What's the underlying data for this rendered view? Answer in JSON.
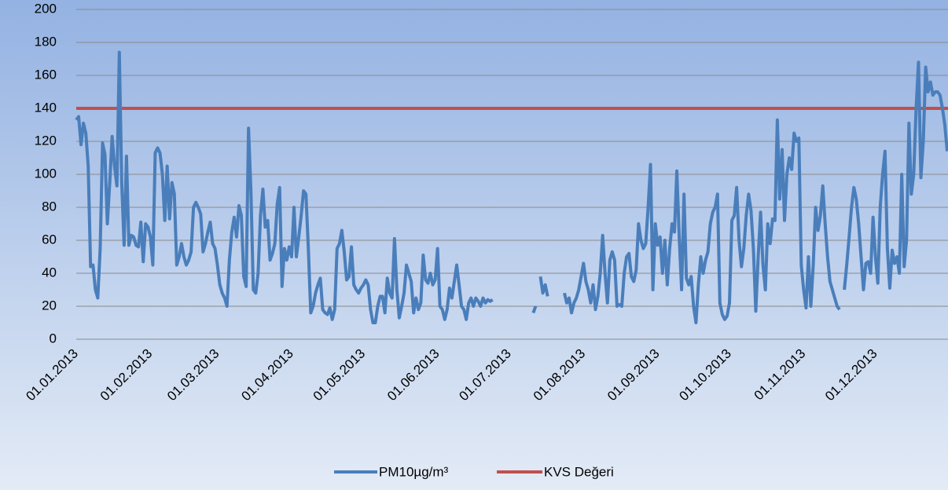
{
  "chart_data": {
    "type": "line",
    "categories": [
      "01.01.2013",
      null,
      null,
      null,
      null,
      null,
      null,
      null,
      null,
      null,
      null,
      null,
      null,
      null,
      null,
      null,
      null,
      null,
      null,
      null,
      null,
      null,
      null,
      null,
      null,
      null,
      null,
      null,
      null,
      null,
      null,
      "01.02.2013",
      null,
      null,
      null,
      null,
      null,
      null,
      null,
      null,
      null,
      null,
      null,
      null,
      null,
      null,
      null,
      null,
      null,
      null,
      null,
      null,
      null,
      null,
      null,
      null,
      null,
      null,
      null,
      "01.03.2013",
      null,
      null,
      null,
      null,
      null,
      null,
      null,
      null,
      null,
      null,
      null,
      null,
      null,
      null,
      null,
      null,
      null,
      null,
      null,
      null,
      null,
      null,
      null,
      null,
      null,
      null,
      null,
      null,
      null,
      null,
      "01.04.2013",
      null,
      null,
      null,
      null,
      null,
      null,
      null,
      null,
      null,
      null,
      null,
      null,
      null,
      null,
      null,
      null,
      null,
      null,
      null,
      null,
      null,
      null,
      null,
      null,
      null,
      null,
      null,
      null,
      null,
      "01.05.2013",
      null,
      null,
      null,
      null,
      null,
      null,
      null,
      null,
      null,
      null,
      null,
      null,
      null,
      null,
      null,
      null,
      null,
      null,
      null,
      null,
      null,
      null,
      null,
      null,
      null,
      null,
      null,
      null,
      null,
      null,
      "01.06.2013",
      null,
      null,
      null,
      null,
      null,
      null,
      null,
      null,
      null,
      null,
      null,
      null,
      null,
      null,
      null,
      null,
      null,
      null,
      null,
      null,
      null,
      null,
      null,
      null,
      null,
      null,
      null,
      null,
      null,
      "01.07.2013",
      null,
      null,
      null,
      null,
      null,
      null,
      null,
      null,
      null,
      null,
      null,
      null,
      null,
      null,
      null,
      null,
      null,
      null,
      null,
      null,
      null,
      null,
      null,
      null,
      null,
      null,
      null,
      null,
      null,
      null,
      "01.08.2013",
      null,
      null,
      null,
      null,
      null,
      null,
      null,
      null,
      null,
      null,
      null,
      null,
      null,
      null,
      null,
      null,
      null,
      null,
      null,
      null,
      null,
      null,
      null,
      null,
      null,
      null,
      null,
      null,
      null,
      null,
      "01.09.2013",
      null,
      null,
      null,
      null,
      null,
      null,
      null,
      null,
      null,
      null,
      null,
      null,
      null,
      null,
      null,
      null,
      null,
      null,
      null,
      null,
      null,
      null,
      null,
      null,
      null,
      null,
      null,
      null,
      null,
      "01.10.2013",
      null,
      null,
      null,
      null,
      null,
      null,
      null,
      null,
      null,
      null,
      null,
      null,
      null,
      null,
      null,
      null,
      null,
      null,
      null,
      null,
      null,
      null,
      null,
      null,
      null,
      null,
      null,
      null,
      null,
      null,
      "01.11.2013",
      null,
      null,
      null,
      null,
      null,
      null,
      null,
      null,
      null,
      null,
      null,
      null,
      null,
      null,
      null,
      null,
      null,
      null,
      null,
      null,
      null,
      null,
      null,
      null,
      null,
      null,
      null,
      null,
      null,
      "01.12.2013",
      null,
      null,
      null,
      null,
      null,
      null,
      null,
      null,
      null,
      null,
      null,
      null,
      null,
      null,
      null,
      null,
      null,
      null,
      null,
      null,
      null,
      null,
      null,
      null,
      null,
      null,
      null,
      null,
      null,
      null
    ],
    "series": [
      {
        "name": "PM10µg/m³",
        "color": "#4a7ebb",
        "values": [
          133,
          135,
          118,
          131,
          125,
          105,
          44,
          45,
          30,
          25,
          55,
          119,
          112,
          70,
          95,
          123,
          105,
          93,
          174,
          95,
          57,
          111,
          57,
          63,
          62,
          57,
          56,
          71,
          47,
          70,
          68,
          62,
          45,
          113,
          116,
          113,
          100,
          72,
          105,
          73,
          95,
          88,
          45,
          50,
          58,
          50,
          45,
          48,
          53,
          80,
          83,
          80,
          76,
          53,
          58,
          65,
          71,
          58,
          55,
          45,
          33,
          28,
          25,
          20,
          48,
          65,
          74,
          62,
          81,
          75,
          38,
          32,
          128,
          90,
          30,
          28,
          40,
          75,
          91,
          68,
          72,
          48,
          52,
          58,
          82,
          92,
          32,
          55,
          48,
          56,
          50,
          80,
          50,
          62,
          75,
          90,
          88,
          55,
          16,
          20,
          28,
          33,
          37,
          18,
          16,
          15,
          19,
          12,
          18,
          55,
          58,
          66,
          53,
          36,
          38,
          56,
          33,
          30,
          28,
          31,
          33,
          36,
          33,
          18,
          10,
          10,
          20,
          26,
          26,
          16,
          37,
          28,
          25,
          61,
          30,
          13,
          20,
          28,
          45,
          40,
          35,
          16,
          25,
          18,
          22,
          51,
          36,
          34,
          40,
          33,
          36,
          55,
          20,
          18,
          12,
          18,
          31,
          25,
          35,
          45,
          33,
          20,
          18,
          12,
          22,
          25,
          20,
          25,
          23,
          20,
          25,
          22,
          24,
          23,
          24,
          null,
          null,
          null,
          null,
          null,
          null,
          null,
          null,
          null,
          null,
          null,
          null,
          null,
          null,
          null,
          null,
          16,
          20,
          null,
          38,
          28,
          33,
          26,
          null,
          null,
          null,
          null,
          null,
          null,
          28,
          22,
          25,
          16,
          22,
          25,
          30,
          38,
          46,
          35,
          30,
          22,
          33,
          18,
          26,
          40,
          63,
          40,
          22,
          48,
          53,
          48,
          20,
          21,
          20,
          40,
          50,
          52,
          38,
          35,
          42,
          70,
          60,
          55,
          58,
          80,
          106,
          30,
          70,
          57,
          62,
          40,
          60,
          33,
          55,
          70,
          65,
          102,
          62,
          30,
          88,
          37,
          33,
          38,
          20,
          10,
          33,
          50,
          40,
          48,
          53,
          70,
          77,
          80,
          88,
          22,
          15,
          12,
          14,
          22,
          72,
          75,
          92,
          60,
          44,
          55,
          75,
          88,
          78,
          55,
          17,
          50,
          77,
          45,
          30,
          70,
          58,
          73,
          72,
          133,
          85,
          115,
          72,
          100,
          110,
          103,
          125,
          120,
          122,
          45,
          30,
          19,
          50,
          20,
          45,
          80,
          66,
          75,
          93,
          70,
          50,
          35,
          30,
          25,
          20,
          18,
          null,
          30,
          45,
          62,
          80,
          92,
          85,
          70,
          50,
          30,
          46,
          47,
          40,
          74,
          50,
          34,
          80,
          100,
          114,
          55,
          31,
          54,
          46,
          50,
          40,
          100,
          44,
          60,
          131,
          88,
          100,
          140,
          168,
          98,
          120,
          165,
          150,
          156,
          148,
          150,
          150,
          148,
          140,
          130,
          114
        ]
      }
    ],
    "reference_line": {
      "name": "KVS Değeri",
      "value": 140,
      "color": "#c0504d"
    },
    "ylim": [
      0,
      200
    ],
    "yticks": [
      0,
      20,
      40,
      60,
      80,
      100,
      120,
      140,
      160,
      180,
      200
    ],
    "grid": true,
    "legend": "bottom"
  }
}
